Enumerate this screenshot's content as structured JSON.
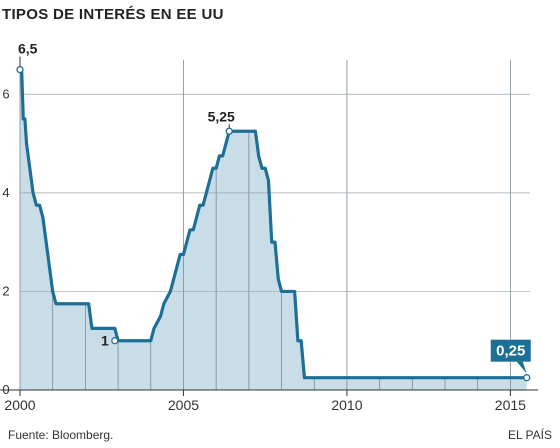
{
  "title": "TIPOS DE INTERÉS EN EE UU",
  "source": "Fuente: Bloomberg.",
  "credit": "EL PAÍS",
  "colors": {
    "line": "#1e6f96",
    "fill": "#c9dde8",
    "grid": "#7a8a95",
    "callout_bg": "#1e6f96"
  },
  "chart_data": {
    "type": "area",
    "title": "TIPOS DE INTERÉS EN EE UU",
    "xlabel": "",
    "ylabel": "",
    "xlim": [
      2000,
      2015.6
    ],
    "ylim": [
      0,
      7
    ],
    "x_ticks": [
      2000,
      2005,
      2010,
      2015
    ],
    "y_ticks": [
      0,
      2,
      4,
      6
    ],
    "grid": "vertical yearly lines, horizontal at 2 and 4",
    "series": [
      {
        "values": [
          [
            2000.0,
            6.5
          ],
          [
            2000.05,
            6.5
          ],
          [
            2000.1,
            5.5
          ],
          [
            2000.15,
            5.5
          ],
          [
            2000.2,
            5.0
          ],
          [
            2000.3,
            4.5
          ],
          [
            2000.4,
            4.0
          ],
          [
            2000.5,
            3.75
          ],
          [
            2000.6,
            3.75
          ],
          [
            2000.7,
            3.5
          ],
          [
            2000.8,
            3.0
          ],
          [
            2000.9,
            2.5
          ],
          [
            2001.0,
            2.0
          ],
          [
            2001.1,
            1.75
          ],
          [
            2001.5,
            1.75
          ],
          [
            2002.0,
            1.75
          ],
          [
            2002.1,
            1.75
          ],
          [
            2002.2,
            1.25
          ],
          [
            2002.5,
            1.25
          ],
          [
            2002.9,
            1.25
          ],
          [
            2003.0,
            1.0
          ],
          [
            2003.5,
            1.0
          ],
          [
            2004.0,
            1.0
          ],
          [
            2004.1,
            1.25
          ],
          [
            2004.3,
            1.5
          ],
          [
            2004.4,
            1.75
          ],
          [
            2004.6,
            2.0
          ],
          [
            2004.7,
            2.25
          ],
          [
            2004.8,
            2.5
          ],
          [
            2004.9,
            2.75
          ],
          [
            2005.0,
            2.75
          ],
          [
            2005.1,
            3.0
          ],
          [
            2005.2,
            3.25
          ],
          [
            2005.3,
            3.25
          ],
          [
            2005.4,
            3.5
          ],
          [
            2005.5,
            3.75
          ],
          [
            2005.6,
            3.75
          ],
          [
            2005.7,
            4.0
          ],
          [
            2005.8,
            4.25
          ],
          [
            2005.9,
            4.5
          ],
          [
            2006.0,
            4.5
          ],
          [
            2006.1,
            4.75
          ],
          [
            2006.2,
            4.75
          ],
          [
            2006.3,
            5.0
          ],
          [
            2006.4,
            5.25
          ],
          [
            2006.6,
            5.25
          ],
          [
            2007.0,
            5.25
          ],
          [
            2007.2,
            5.25
          ],
          [
            2007.3,
            4.75
          ],
          [
            2007.4,
            4.5
          ],
          [
            2007.5,
            4.5
          ],
          [
            2007.6,
            4.25
          ],
          [
            2007.7,
            3.0
          ],
          [
            2007.8,
            3.0
          ],
          [
            2007.9,
            2.25
          ],
          [
            2008.0,
            2.0
          ],
          [
            2008.3,
            2.0
          ],
          [
            2008.4,
            2.0
          ],
          [
            2008.5,
            1.0
          ],
          [
            2008.6,
            1.0
          ],
          [
            2008.7,
            0.25
          ],
          [
            2010.0,
            0.25
          ],
          [
            2015.0,
            0.25
          ],
          [
            2015.5,
            0.25
          ]
        ]
      }
    ],
    "annotations": [
      {
        "label": "6,5",
        "x": 2000.0,
        "y": 6.5
      },
      {
        "label": "1",
        "x": 2002.9,
        "y": 1.0
      },
      {
        "label": "5,25",
        "x": 2006.4,
        "y": 5.25
      },
      {
        "label": "0,25",
        "x": 2015.5,
        "y": 0.25
      }
    ]
  }
}
